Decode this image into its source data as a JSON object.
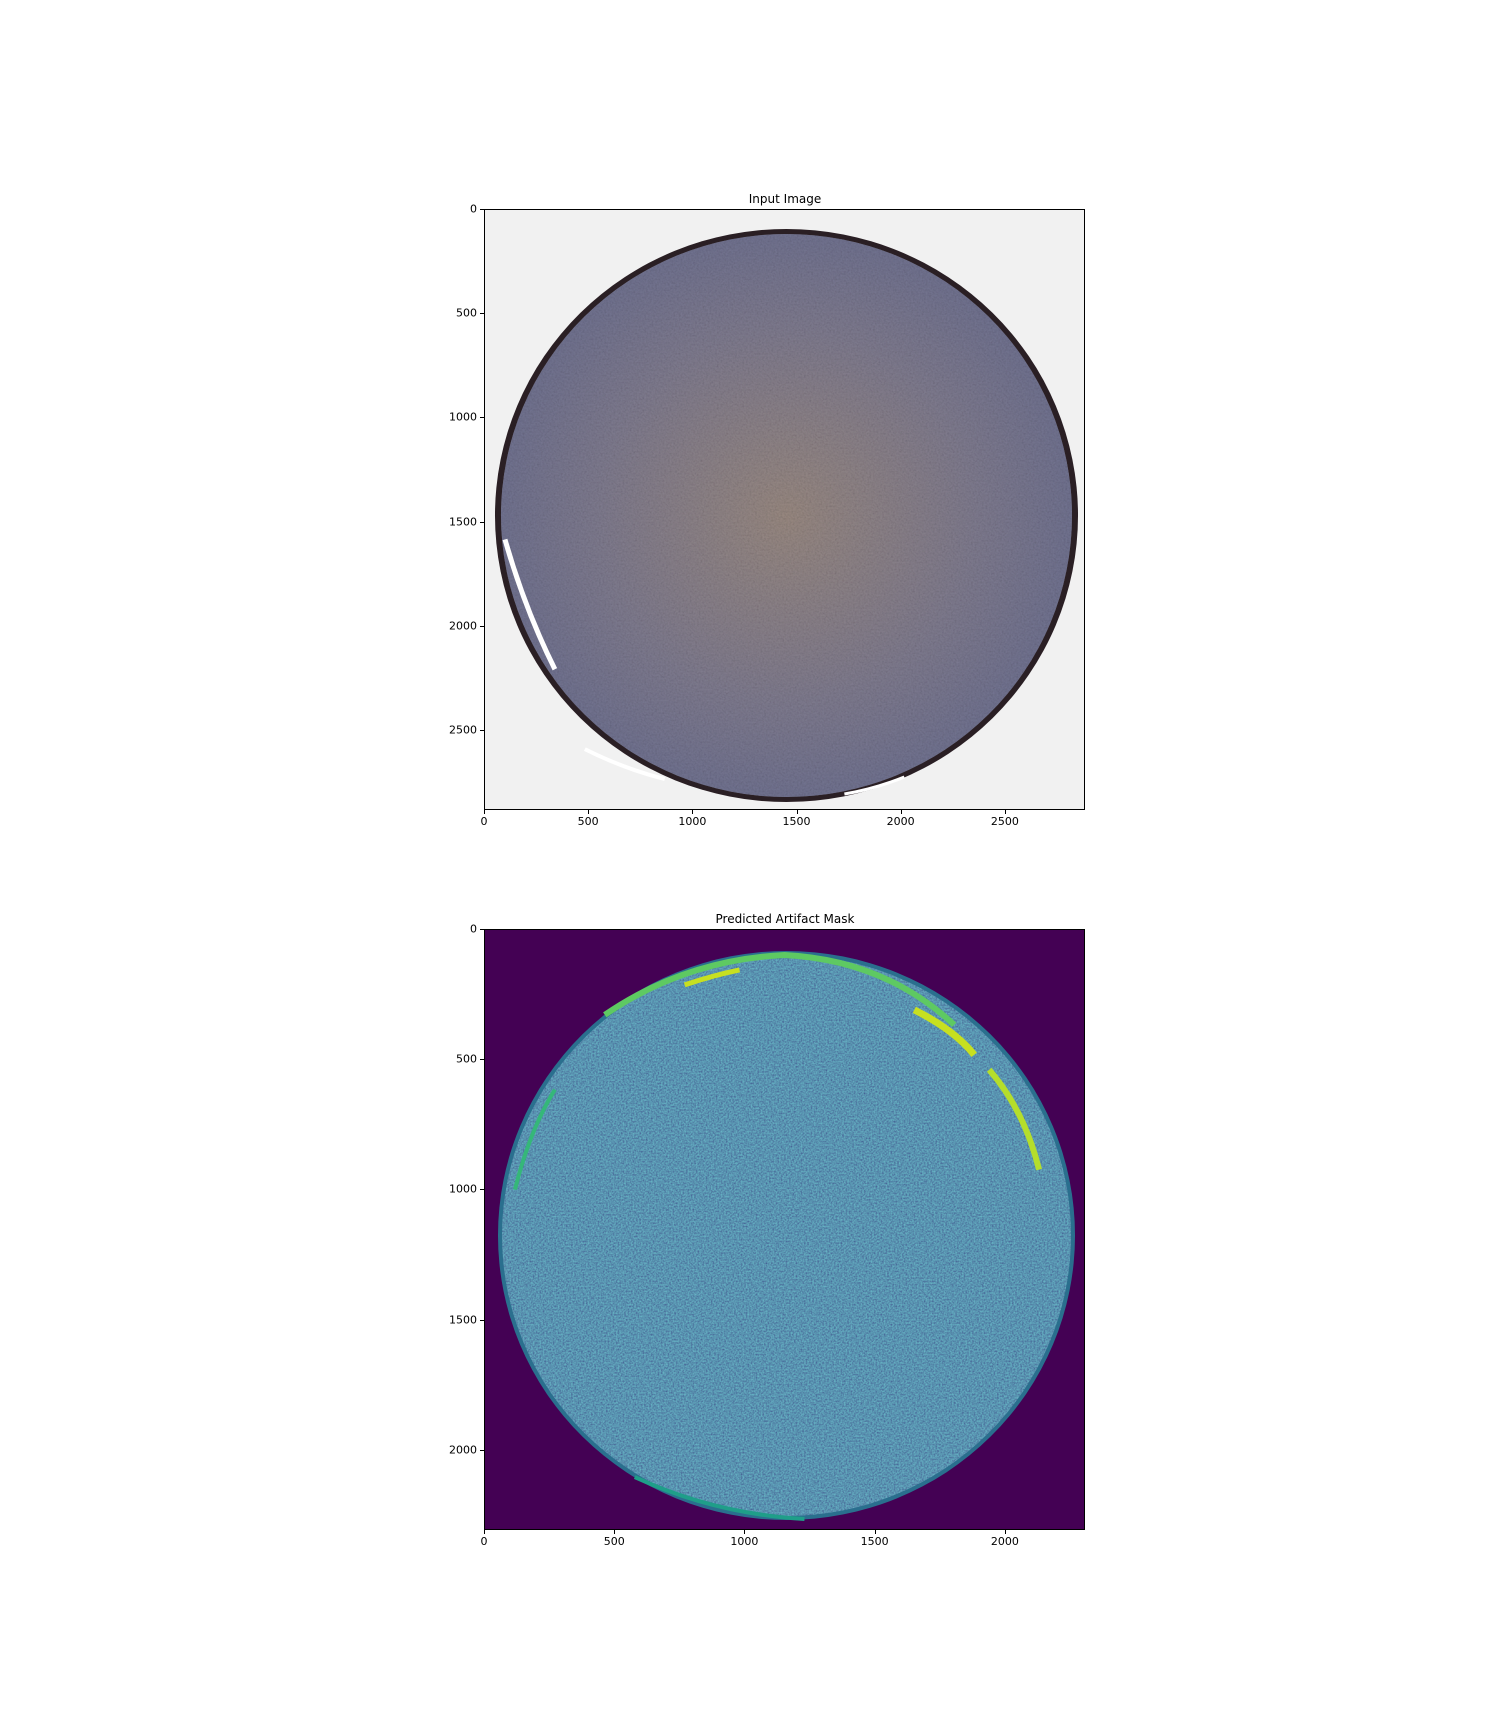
{
  "figure": {
    "panels": [
      {
        "id": "input",
        "title": "Input Image",
        "xticks": [
          "0",
          "500",
          "1000",
          "1500",
          "2000",
          "2500"
        ],
        "yticks": [
          "0",
          "500",
          "1000",
          "1500",
          "2000",
          "2500"
        ],
        "x_range": [
          0,
          2880
        ],
        "y_range": [
          2880,
          0
        ],
        "x_tick_values": [
          0,
          500,
          1000,
          1500,
          2000,
          2500
        ],
        "y_tick_values": [
          0,
          500,
          1000,
          1500,
          2000,
          2500
        ],
        "background_color": "#f1f1f1",
        "tissue_colors": [
          "#8a8a9a",
          "#6f7596",
          "#9c8778",
          "#5c5a70"
        ],
        "edge_color": "#2a1f24"
      },
      {
        "id": "mask",
        "title": "Predicted Artifact Mask",
        "xticks": [
          "0",
          "500",
          "1000",
          "1500",
          "2000"
        ],
        "yticks": [
          "0",
          "500",
          "1000",
          "1500",
          "2000"
        ],
        "x_range": [
          0,
          2304
        ],
        "y_range": [
          2304,
          0
        ],
        "x_tick_values": [
          0,
          500,
          1000,
          1500,
          2000
        ],
        "y_tick_values": [
          0,
          500,
          1000,
          1500,
          2000
        ],
        "background_color": "#440154",
        "tissue_colors": [
          "#3b3c8a",
          "#2f4b8e",
          "#35518f",
          "#414487"
        ],
        "highlight_color": "#c7e020",
        "edge_color": "#21918c"
      }
    ]
  }
}
